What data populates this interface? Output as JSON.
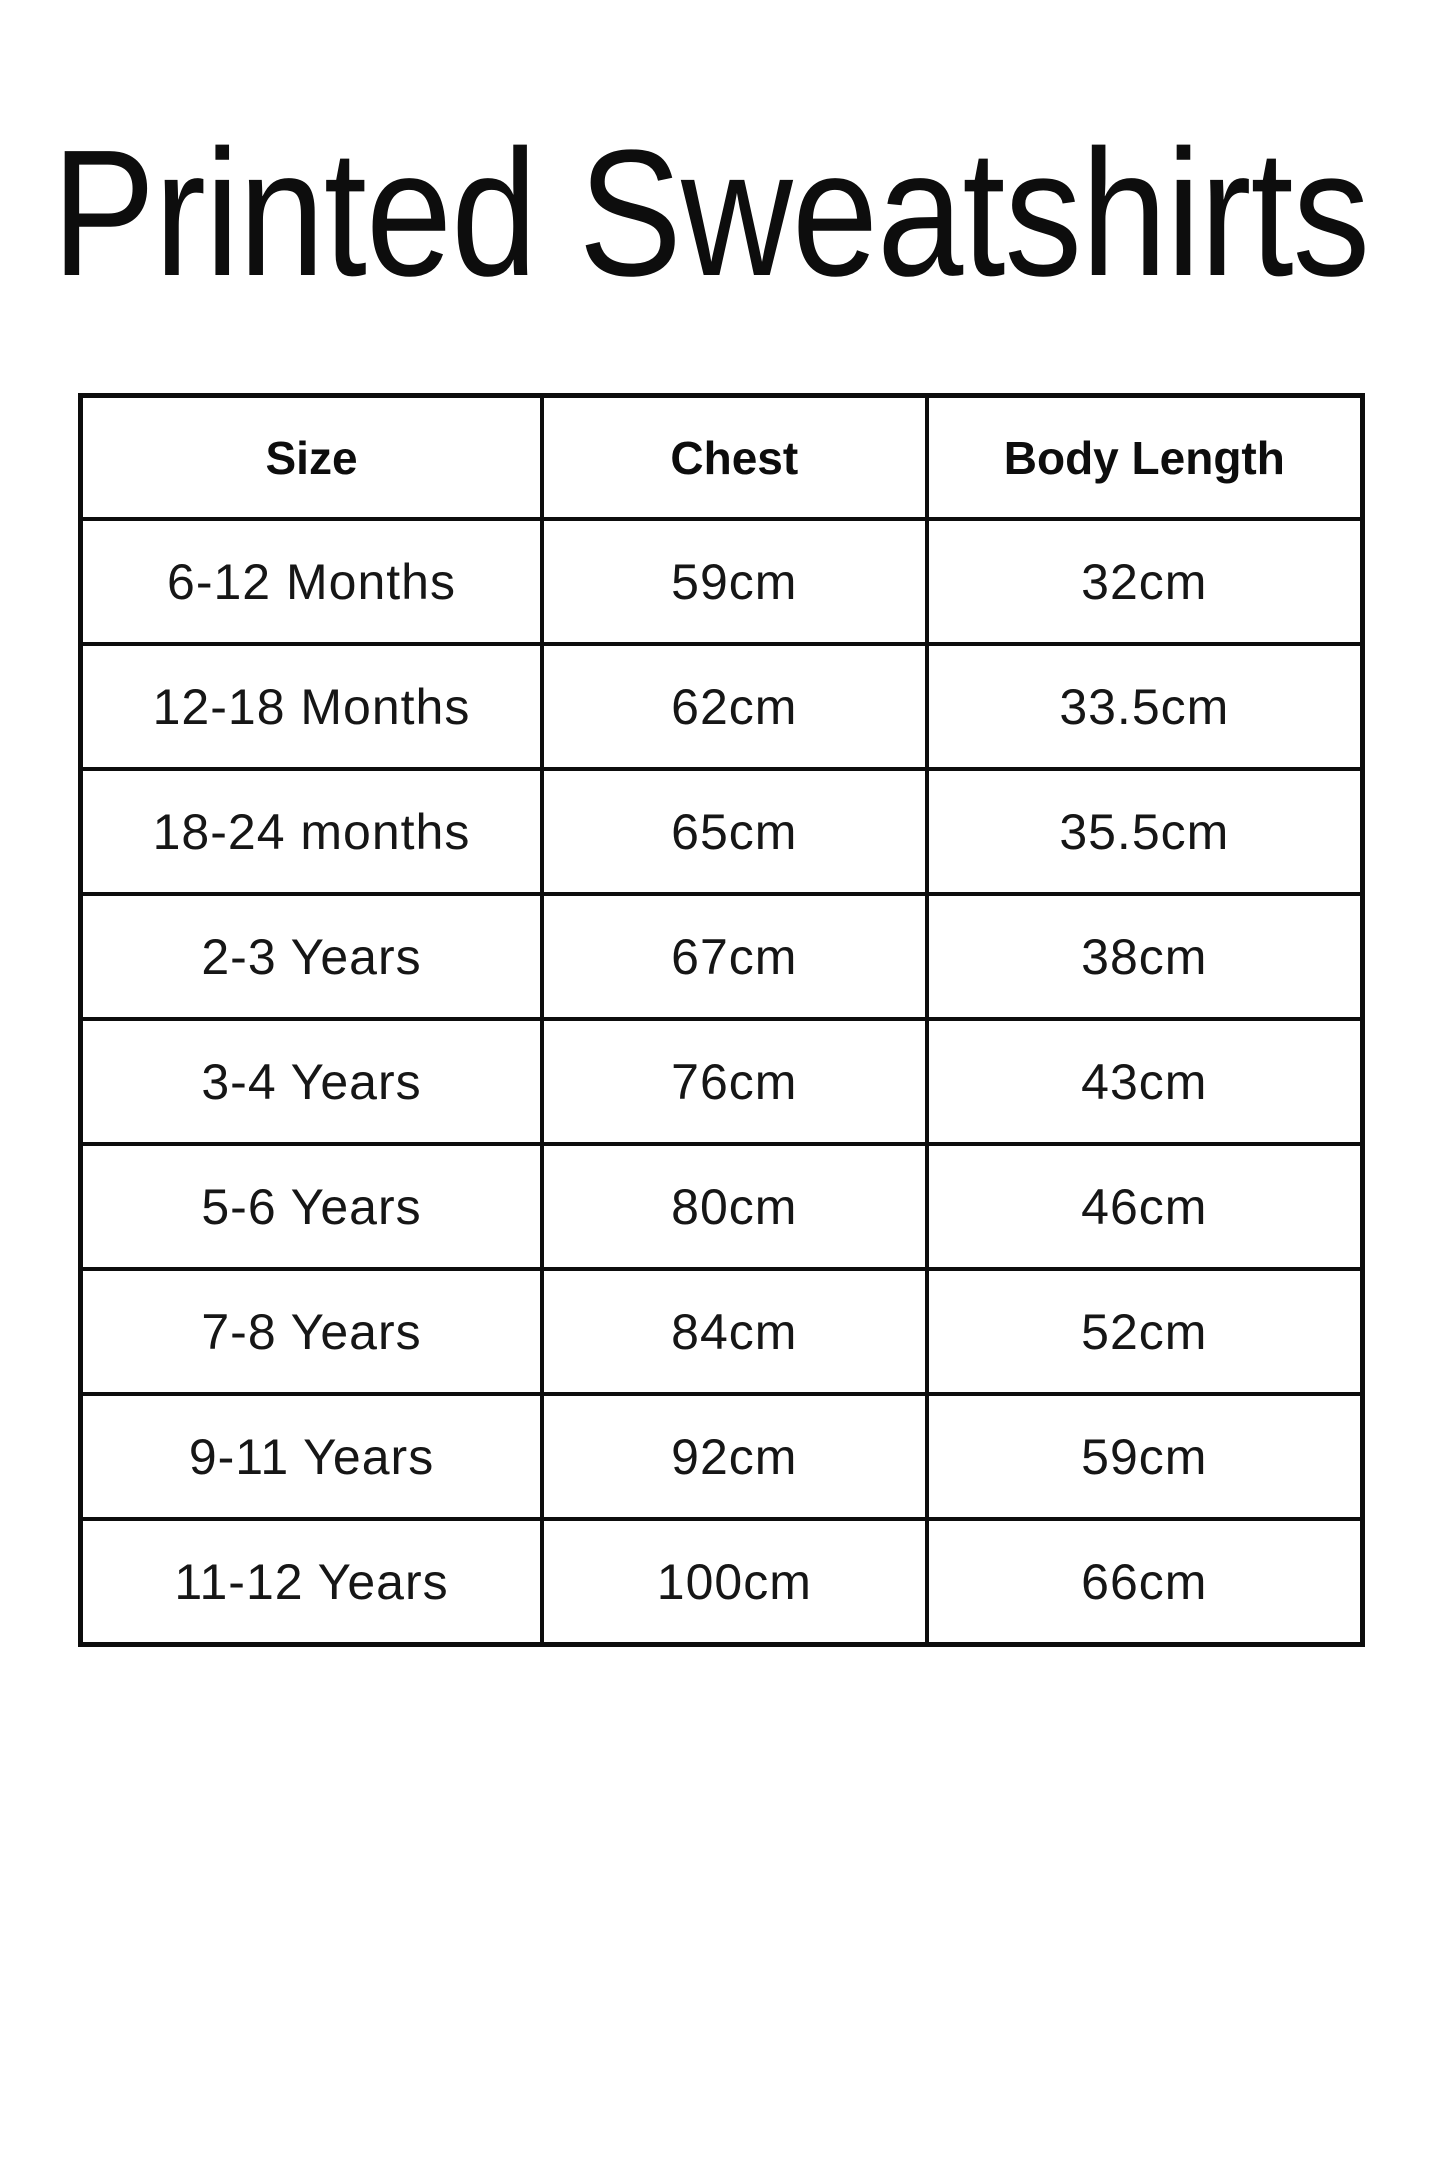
{
  "page": {
    "title": "Printed Sweatshirts",
    "background_color": "#ffffff",
    "text_color": "#111111",
    "border_color": "#0d0d0d"
  },
  "table": {
    "headers": [
      "Size",
      "Chest",
      "Body Length"
    ],
    "rows": [
      {
        "size": "6-12 Months",
        "chest": "59cm",
        "body_length": "32cm"
      },
      {
        "size": "12-18 Months",
        "chest": "62cm",
        "body_length": "33.5cm"
      },
      {
        "size": "18-24 months",
        "chest": "65cm",
        "body_length": "35.5cm"
      },
      {
        "size": "2-3 Years",
        "chest": "67cm",
        "body_length": "38cm"
      },
      {
        "size": "3-4 Years",
        "chest": "76cm",
        "body_length": "43cm"
      },
      {
        "size": "5-6 Years",
        "chest": "80cm",
        "body_length": "46cm"
      },
      {
        "size": "7-8 Years",
        "chest": "84cm",
        "body_length": "52cm"
      },
      {
        "size": "9-11 Years",
        "chest": "92cm",
        "body_length": "59cm"
      },
      {
        "size": "11-12 Years",
        "chest": "100cm",
        "body_length": "66cm"
      }
    ]
  }
}
